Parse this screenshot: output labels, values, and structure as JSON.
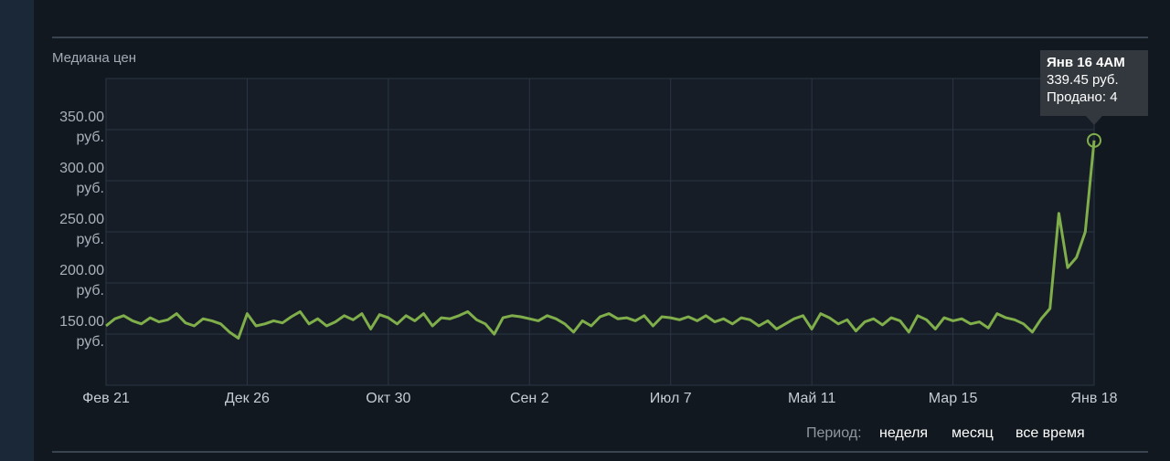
{
  "chart_data": {
    "type": "line",
    "title": "Медиана цен",
    "categories": [
      "Фев 21",
      null,
      null,
      null,
      null,
      null,
      null,
      null,
      null,
      null,
      null,
      null,
      null,
      null,
      null,
      null,
      "Дек 26",
      null,
      null,
      null,
      null,
      null,
      null,
      null,
      null,
      null,
      null,
      null,
      null,
      null,
      null,
      null,
      "Окт 30",
      null,
      null,
      null,
      null,
      null,
      null,
      null,
      null,
      null,
      null,
      null,
      null,
      null,
      null,
      null,
      "Сен 2",
      null,
      null,
      null,
      null,
      null,
      null,
      null,
      null,
      null,
      null,
      null,
      null,
      null,
      null,
      null,
      "Июл 7",
      null,
      null,
      null,
      null,
      null,
      null,
      null,
      null,
      null,
      null,
      null,
      null,
      null,
      null,
      null,
      "Май 11",
      null,
      null,
      null,
      null,
      null,
      null,
      null,
      null,
      null,
      null,
      null,
      null,
      null,
      null,
      null,
      "Мар 15",
      null,
      null,
      null,
      null,
      null,
      null,
      null,
      null,
      null,
      null,
      null,
      null,
      null,
      null,
      null,
      "Янв 18"
    ],
    "values": [
      158,
      165,
      168,
      163,
      160,
      166,
      162,
      164,
      170,
      161,
      158,
      165,
      163,
      160,
      152,
      146,
      170,
      158,
      160,
      163,
      161,
      167,
      172,
      160,
      165,
      158,
      162,
      168,
      164,
      170,
      155,
      169,
      166,
      160,
      168,
      163,
      170,
      158,
      166,
      165,
      168,
      172,
      164,
      160,
      150,
      166,
      168,
      167,
      165,
      163,
      168,
      165,
      160,
      152,
      163,
      158,
      167,
      170,
      165,
      166,
      163,
      168,
      158,
      167,
      166,
      164,
      167,
      163,
      168,
      162,
      165,
      160,
      166,
      164,
      158,
      163,
      155,
      160,
      165,
      168,
      155,
      170,
      166,
      160,
      164,
      153,
      162,
      165,
      159,
      166,
      163,
      152,
      168,
      164,
      155,
      166,
      163,
      165,
      160,
      162,
      156,
      170,
      166,
      164,
      160,
      152,
      165,
      175,
      268,
      215,
      225,
      250,
      339.45
    ],
    "color": "#7fae4a",
    "ylim": [
      100,
      400
    ],
    "yticks": [
      {
        "value": 150,
        "label": "150.00 руб."
      },
      {
        "value": 200,
        "label": "200.00 руб."
      },
      {
        "value": 250,
        "label": "250.00 руб."
      },
      {
        "value": 300,
        "label": "300.00 руб."
      },
      {
        "value": 350,
        "label": "350.00 руб."
      }
    ],
    "grid": true,
    "tooltip": {
      "date": "Янв 16 4AM",
      "price": "339.45 руб.",
      "sold": "Продано: 4"
    },
    "period": {
      "label": "Период:",
      "options": [
        "неделя",
        "месяц",
        "все время"
      ]
    }
  }
}
